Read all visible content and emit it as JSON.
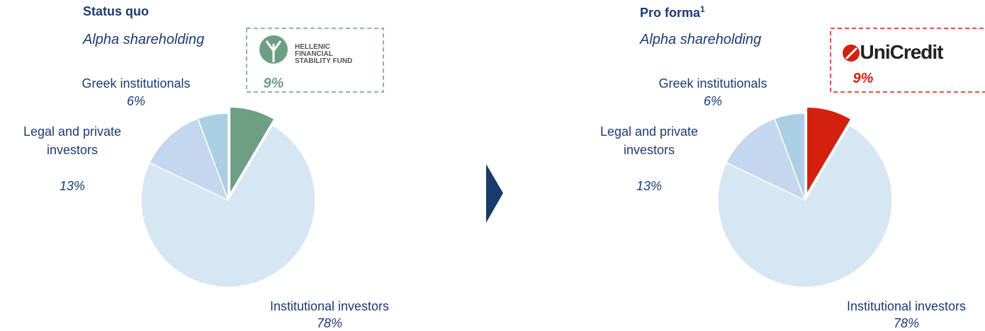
{
  "chart_data": [
    {
      "type": "pie",
      "title": "Status quo",
      "subtitle": "Alpha shareholding",
      "categories": [
        "HELLENIC FINANCIAL STABILITY FUND",
        "Institutional investors",
        "Legal and private investors",
        "Greek institutionals"
      ],
      "values": [
        9,
        78,
        13,
        6
      ],
      "value_labels": [
        "9%",
        "78%",
        "13%",
        "6%"
      ],
      "colors": [
        "#6e9f85",
        "#d6e6f2",
        "#c5d6ef",
        "#aacfe3"
      ],
      "explode": [
        true,
        false,
        false,
        false
      ]
    },
    {
      "type": "pie",
      "title": "Pro forma",
      "title_note": "1",
      "subtitle": "Alpha shareholding",
      "categories": [
        "UniCredit",
        "Institutional investors",
        "Legal and private investors",
        "Greek institutionals"
      ],
      "values": [
        9,
        78,
        13,
        6
      ],
      "value_labels": [
        "9%",
        "78%",
        "13%",
        "6%"
      ],
      "colors": [
        "#d4200f",
        "#d6e6f2",
        "#c5d6ef",
        "#aacfe3"
      ],
      "explode": [
        true,
        false,
        false,
        false
      ]
    }
  ]
}
